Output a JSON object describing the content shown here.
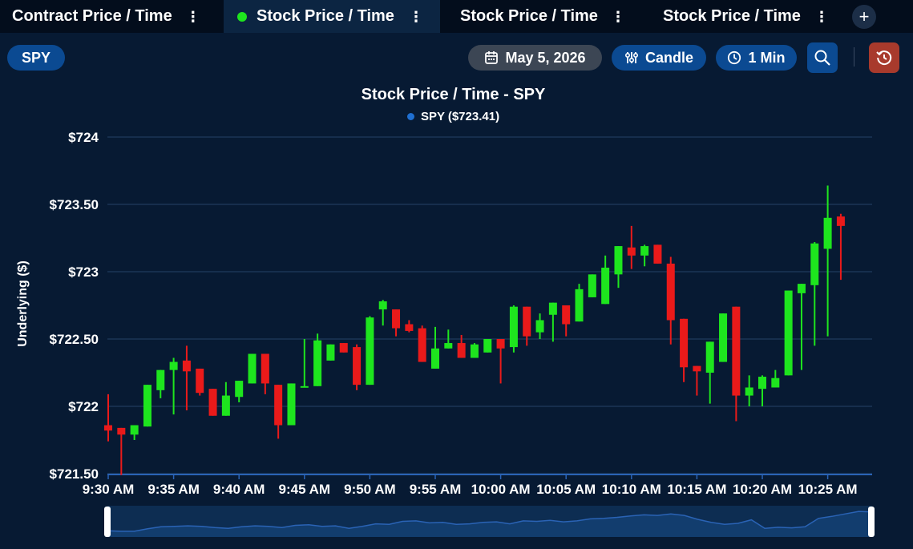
{
  "tabs": [
    {
      "label": "Contract Price / Time",
      "active": false
    },
    {
      "label": "Stock Price / Time",
      "active": true
    },
    {
      "label": "Stock Price / Time",
      "active": false
    },
    {
      "label": "Stock Price / Time",
      "active": false
    }
  ],
  "add_tab_label": "+",
  "toolbar": {
    "symbol": "SPY",
    "date": "May 5, 2026",
    "chart_style": "Candle",
    "interval": "1 Min",
    "icons": {
      "date": "calendar-icon",
      "style": "sliders-icon",
      "interval": "clock-icon",
      "zoom": "zoom-search-icon",
      "reset": "history-reset-icon"
    }
  },
  "colors": {
    "background": "#071a33",
    "up": "#1ee51e",
    "down": "#ea1a1a",
    "accent": "#0b4a92",
    "reset": "#a83a2c"
  },
  "chart_data": {
    "type": "candlestick",
    "title": "Stock Price / Time - SPY",
    "legend": [
      "SPY ($723.41)"
    ],
    "ylabel": "Underlying ($)",
    "ylim": [
      721.5,
      724
    ],
    "yticks": [
      724,
      723.5,
      723,
      722.5,
      722,
      721.5
    ],
    "ytick_labels": [
      "$724",
      "$723.50",
      "$723",
      "$722.50",
      "$722",
      "$721.50"
    ],
    "xtick_labels": [
      "9:30 AM",
      "9:35 AM",
      "9:40 AM",
      "9:45 AM",
      "9:50 AM",
      "9:55 AM",
      "10:00 AM",
      "10:05 AM",
      "10:10 AM",
      "10:15 AM",
      "10:20 AM",
      "10:25 AM"
    ],
    "grid": true,
    "candles": [
      {
        "o": 721.86,
        "h": 722.09,
        "l": 721.74,
        "c": 721.82
      },
      {
        "o": 721.84,
        "h": 721.84,
        "l": 721.49,
        "c": 721.79
      },
      {
        "o": 721.79,
        "h": 721.86,
        "l": 721.75,
        "c": 721.86
      },
      {
        "o": 721.85,
        "h": 722.16,
        "l": 721.85,
        "c": 722.16
      },
      {
        "o": 722.12,
        "h": 722.27,
        "l": 722.06,
        "c": 722.27
      },
      {
        "o": 722.27,
        "h": 722.36,
        "l": 721.94,
        "c": 722.33
      },
      {
        "o": 722.34,
        "h": 722.45,
        "l": 721.97,
        "c": 722.26
      },
      {
        "o": 722.28,
        "h": 722.28,
        "l": 722.08,
        "c": 722.1
      },
      {
        "o": 722.13,
        "h": 722.13,
        "l": 721.93,
        "c": 721.93
      },
      {
        "o": 721.93,
        "h": 722.18,
        "l": 721.93,
        "c": 722.08
      },
      {
        "o": 722.07,
        "h": 722.19,
        "l": 722.03,
        "c": 722.19
      },
      {
        "o": 722.17,
        "h": 722.39,
        "l": 722.17,
        "c": 722.39
      },
      {
        "o": 722.39,
        "h": 722.39,
        "l": 722.09,
        "c": 722.17
      },
      {
        "o": 722.16,
        "h": 722.16,
        "l": 721.76,
        "c": 721.86
      },
      {
        "o": 721.86,
        "h": 722.17,
        "l": 721.86,
        "c": 722.17
      },
      {
        "o": 722.14,
        "h": 722.5,
        "l": 722.14,
        "c": 722.15
      },
      {
        "o": 722.15,
        "h": 722.54,
        "l": 722.15,
        "c": 722.49
      },
      {
        "o": 722.34,
        "h": 722.46,
        "l": 722.34,
        "c": 722.46
      },
      {
        "o": 722.47,
        "h": 722.47,
        "l": 722.4,
        "c": 722.4
      },
      {
        "o": 722.44,
        "h": 722.46,
        "l": 722.12,
        "c": 722.16
      },
      {
        "o": 722.16,
        "h": 722.67,
        "l": 722.16,
        "c": 722.66
      },
      {
        "o": 722.72,
        "h": 722.79,
        "l": 722.6,
        "c": 722.78
      },
      {
        "o": 722.72,
        "h": 722.72,
        "l": 722.52,
        "c": 722.58
      },
      {
        "o": 722.61,
        "h": 722.64,
        "l": 722.55,
        "c": 722.56
      },
      {
        "o": 722.58,
        "h": 722.6,
        "l": 722.33,
        "c": 722.33
      },
      {
        "o": 722.28,
        "h": 722.59,
        "l": 722.28,
        "c": 722.43
      },
      {
        "o": 722.43,
        "h": 722.57,
        "l": 722.43,
        "c": 722.47
      },
      {
        "o": 722.47,
        "h": 722.53,
        "l": 722.36,
        "c": 722.36
      },
      {
        "o": 722.36,
        "h": 722.47,
        "l": 722.36,
        "c": 722.46
      },
      {
        "o": 722.4,
        "h": 722.5,
        "l": 722.4,
        "c": 722.5
      },
      {
        "o": 722.5,
        "h": 722.5,
        "l": 722.17,
        "c": 722.43
      },
      {
        "o": 722.44,
        "h": 722.75,
        "l": 722.4,
        "c": 722.74
      },
      {
        "o": 722.74,
        "h": 722.74,
        "l": 722.45,
        "c": 722.52
      },
      {
        "o": 722.55,
        "h": 722.69,
        "l": 722.5,
        "c": 722.64
      },
      {
        "o": 722.68,
        "h": 722.77,
        "l": 722.48,
        "c": 722.77
      },
      {
        "o": 722.75,
        "h": 722.75,
        "l": 722.52,
        "c": 722.61
      },
      {
        "o": 722.63,
        "h": 722.91,
        "l": 722.63,
        "c": 722.87
      },
      {
        "o": 722.81,
        "h": 722.98,
        "l": 722.81,
        "c": 722.98
      },
      {
        "o": 722.76,
        "h": 723.12,
        "l": 722.76,
        "c": 723.03
      },
      {
        "o": 722.98,
        "h": 723.19,
        "l": 722.88,
        "c": 723.19
      },
      {
        "o": 723.18,
        "h": 723.34,
        "l": 723.02,
        "c": 723.12
      },
      {
        "o": 723.12,
        "h": 723.2,
        "l": 723.04,
        "c": 723.19
      },
      {
        "o": 723.2,
        "h": 723.2,
        "l": 723.06,
        "c": 723.06
      },
      {
        "o": 723.06,
        "h": 723.11,
        "l": 722.46,
        "c": 722.64
      },
      {
        "o": 722.65,
        "h": 722.65,
        "l": 722.18,
        "c": 722.29
      },
      {
        "o": 722.3,
        "h": 722.3,
        "l": 722.08,
        "c": 722.26
      },
      {
        "o": 722.25,
        "h": 722.48,
        "l": 722.02,
        "c": 722.48
      },
      {
        "o": 722.33,
        "h": 722.69,
        "l": 722.33,
        "c": 722.69
      },
      {
        "o": 722.74,
        "h": 722.74,
        "l": 721.89,
        "c": 722.08
      },
      {
        "o": 722.08,
        "h": 722.23,
        "l": 722.0,
        "c": 722.14
      },
      {
        "o": 722.13,
        "h": 722.23,
        "l": 722.0,
        "c": 722.22
      },
      {
        "o": 722.14,
        "h": 722.27,
        "l": 722.14,
        "c": 722.21
      },
      {
        "o": 722.23,
        "h": 722.86,
        "l": 722.23,
        "c": 722.86
      },
      {
        "o": 722.84,
        "h": 722.91,
        "l": 722.27,
        "c": 722.91
      },
      {
        "o": 722.9,
        "h": 723.22,
        "l": 722.45,
        "c": 723.21
      },
      {
        "o": 723.17,
        "h": 723.64,
        "l": 722.52,
        "c": 723.4
      },
      {
        "o": 723.41,
        "h": 723.43,
        "l": 722.94,
        "c": 723.34
      }
    ],
    "navigator": [
      0.12,
      0.1,
      0.1,
      0.2,
      0.28,
      0.3,
      0.32,
      0.3,
      0.25,
      0.22,
      0.28,
      0.32,
      0.3,
      0.25,
      0.34,
      0.36,
      0.3,
      0.32,
      0.22,
      0.3,
      0.4,
      0.38,
      0.5,
      0.52,
      0.44,
      0.46,
      0.38,
      0.4,
      0.46,
      0.48,
      0.4,
      0.52,
      0.5,
      0.54,
      0.48,
      0.52,
      0.6,
      0.62,
      0.66,
      0.72,
      0.76,
      0.74,
      0.8,
      0.74,
      0.58,
      0.46,
      0.38,
      0.42,
      0.56,
      0.22,
      0.26,
      0.24,
      0.28,
      0.62,
      0.7,
      0.8,
      0.9,
      0.88
    ]
  }
}
